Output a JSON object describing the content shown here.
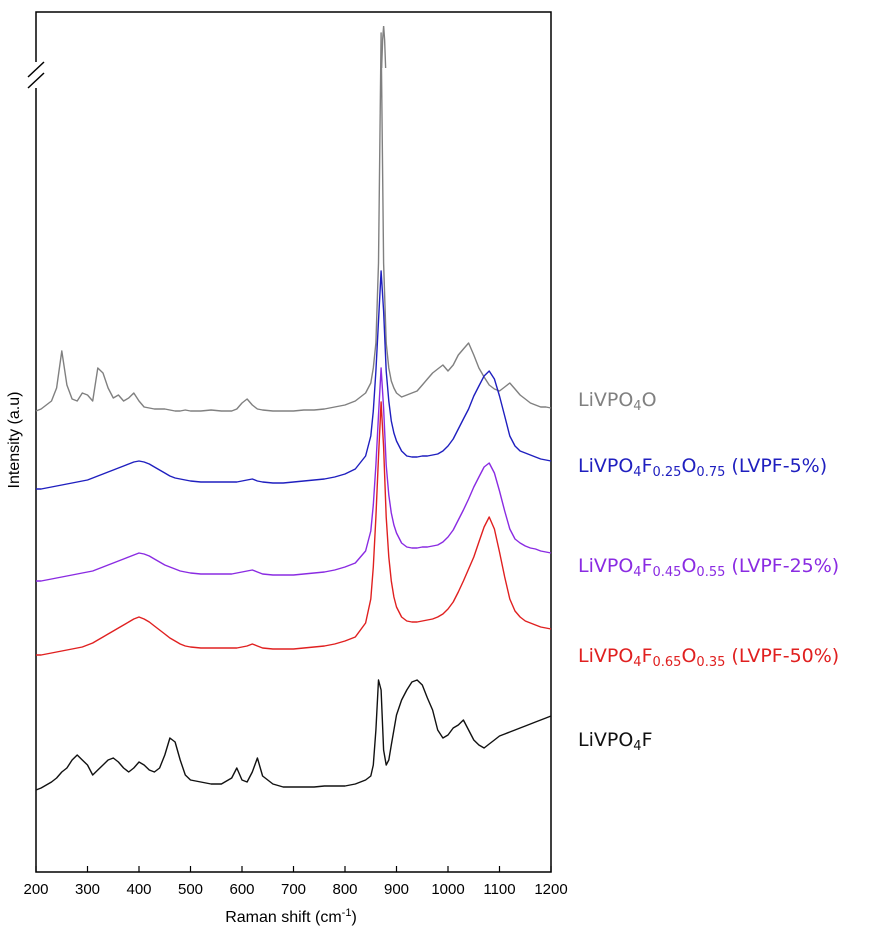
{
  "chart_data": {
    "type": "line",
    "xlabel": "Raman shift (cm",
    "xlabel_sup": "-1",
    "xlabel_close": ")",
    "ylabel": "Intensity (a.u)",
    "xlim": [
      200,
      1200
    ],
    "x_ticks": [
      "200",
      "300",
      "400",
      "500",
      "600",
      "700",
      "800",
      "900",
      "1000",
      "1100",
      "1200"
    ],
    "y_axis_break": true,
    "grid": false,
    "legend": "inline labels right of traces",
    "x": [
      200,
      210,
      220,
      230,
      240,
      250,
      260,
      270,
      280,
      290,
      300,
      310,
      320,
      330,
      340,
      350,
      360,
      370,
      380,
      390,
      400,
      410,
      420,
      430,
      440,
      450,
      460,
      470,
      480,
      490,
      500,
      520,
      540,
      560,
      580,
      590,
      600,
      610,
      620,
      630,
      640,
      660,
      680,
      700,
      720,
      740,
      760,
      780,
      800,
      820,
      840,
      850,
      855,
      860,
      865,
      870,
      875,
      880,
      885,
      890,
      895,
      900,
      910,
      920,
      930,
      940,
      950,
      960,
      970,
      980,
      990,
      1000,
      1010,
      1020,
      1030,
      1040,
      1050,
      1060,
      1070,
      1080,
      1090,
      1100,
      1110,
      1120,
      1130,
      1140,
      1150,
      1160,
      1170,
      1180,
      1190,
      1200
    ],
    "series": [
      {
        "name_parts": [
          {
            "t": "LiVPO"
          },
          {
            "t": "4",
            "sub": true
          },
          {
            "t": "O"
          }
        ],
        "color": "#808080",
        "values": [
          2,
          4,
          8,
          12,
          25,
          62,
          28,
          14,
          12,
          20,
          18,
          12,
          45,
          40,
          25,
          15,
          18,
          12,
          15,
          20,
          12,
          6,
          5,
          4,
          4,
          4,
          3,
          2,
          2,
          3,
          2,
          2,
          3,
          2,
          2,
          4,
          10,
          14,
          8,
          4,
          3,
          2,
          2,
          2,
          3,
          3,
          4,
          6,
          8,
          12,
          20,
          30,
          45,
          70,
          150,
          380,
          150,
          70,
          45,
          32,
          25,
          20,
          16,
          18,
          20,
          22,
          28,
          34,
          40,
          44,
          48,
          42,
          48,
          58,
          64,
          70,
          58,
          45,
          36,
          28,
          24,
          22,
          26,
          30,
          24,
          18,
          14,
          10,
          8,
          6,
          6,
          5
        ]
      },
      {
        "name_parts": [
          {
            "t": "LiVPO"
          },
          {
            "t": "4",
            "sub": true
          },
          {
            "t": "F"
          },
          {
            "t": "0.25",
            "sub": true
          },
          {
            "t": "O"
          },
          {
            "t": "0.75",
            "sub": true
          },
          {
            "t": " (LVPF-5%)"
          }
        ],
        "color": "#1f1fbf",
        "values": [
          2,
          2,
          3,
          4,
          5,
          6,
          7,
          8,
          9,
          10,
          11,
          13,
          15,
          17,
          19,
          21,
          23,
          25,
          27,
          29,
          30,
          29,
          27,
          24,
          21,
          18,
          15,
          13,
          12,
          11,
          10,
          9,
          9,
          9,
          9,
          9,
          10,
          11,
          12,
          10,
          9,
          8,
          8,
          9,
          10,
          11,
          12,
          14,
          17,
          22,
          35,
          55,
          80,
          120,
          170,
          220,
          180,
          120,
          90,
          70,
          58,
          50,
          40,
          35,
          34,
          34,
          35,
          35,
          36,
          37,
          40,
          45,
          52,
          62,
          72,
          82,
          95,
          105,
          115,
          120,
          112,
          95,
          75,
          55,
          45,
          40,
          38,
          36,
          34,
          32,
          31,
          30
        ]
      },
      {
        "name_parts": [
          {
            "t": "LiVPO"
          },
          {
            "t": "4",
            "sub": true
          },
          {
            "t": "F"
          },
          {
            "t": "0.45",
            "sub": true
          },
          {
            "t": "O"
          },
          {
            "t": "0.55",
            "sub": true
          },
          {
            "t": " (LVPF-25%)"
          }
        ],
        "color": "#8a2be2",
        "values": [
          2,
          2,
          3,
          4,
          5,
          6,
          7,
          8,
          9,
          10,
          11,
          12,
          14,
          16,
          18,
          20,
          22,
          24,
          26,
          28,
          30,
          29,
          27,
          24,
          21,
          18,
          16,
          14,
          12,
          11,
          10,
          9,
          9,
          9,
          9,
          10,
          11,
          12,
          13,
          11,
          9,
          8,
          8,
          8,
          9,
          10,
          11,
          13,
          16,
          20,
          32,
          52,
          78,
          118,
          168,
          215,
          175,
          118,
          88,
          70,
          58,
          50,
          40,
          36,
          35,
          35,
          36,
          36,
          37,
          38,
          41,
          46,
          53,
          63,
          73,
          84,
          96,
          106,
          116,
          120,
          110,
          92,
          72,
          54,
          44,
          40,
          37,
          35,
          34,
          32,
          31,
          30
        ]
      },
      {
        "name_parts": [
          {
            "t": "LiVPO"
          },
          {
            "t": "4",
            "sub": true
          },
          {
            "t": "F"
          },
          {
            "t": "0.65",
            "sub": true
          },
          {
            "t": "O"
          },
          {
            "t": "0.35",
            "sub": true
          },
          {
            "t": " (LVPF-50%)"
          }
        ],
        "color": "#e02020",
        "values": [
          2,
          2,
          3,
          4,
          5,
          6,
          7,
          8,
          9,
          10,
          12,
          14,
          17,
          20,
          23,
          26,
          29,
          32,
          35,
          38,
          40,
          38,
          35,
          31,
          27,
          23,
          19,
          16,
          13,
          11,
          10,
          9,
          9,
          9,
          9,
          9,
          10,
          11,
          13,
          11,
          9,
          8,
          8,
          8,
          9,
          10,
          11,
          13,
          16,
          20,
          34,
          58,
          90,
          140,
          200,
          255,
          210,
          140,
          100,
          76,
          60,
          50,
          40,
          36,
          35,
          35,
          36,
          37,
          38,
          40,
          43,
          48,
          55,
          65,
          76,
          88,
          100,
          115,
          130,
          140,
          128,
          105,
          80,
          58,
          46,
          40,
          36,
          34,
          32,
          30,
          29,
          28
        ]
      },
      {
        "name_parts": [
          {
            "t": "LiVPO"
          },
          {
            "t": "4",
            "sub": true
          },
          {
            "t": "F"
          }
        ],
        "color": "#111111",
        "values": [
          0,
          2,
          5,
          8,
          12,
          18,
          22,
          30,
          35,
          30,
          25,
          15,
          20,
          25,
          30,
          32,
          28,
          22,
          18,
          22,
          28,
          25,
          20,
          18,
          22,
          35,
          52,
          48,
          30,
          15,
          10,
          8,
          6,
          6,
          12,
          22,
          10,
          8,
          18,
          32,
          14,
          6,
          3,
          3,
          3,
          3,
          4,
          4,
          4,
          6,
          10,
          14,
          25,
          60,
          110,
          100,
          40,
          25,
          30,
          45,
          60,
          75,
          90,
          100,
          108,
          110,
          105,
          92,
          80,
          60,
          52,
          55,
          62,
          65,
          70,
          60,
          50,
          45,
          42,
          46,
          50,
          54,
          56,
          58,
          60,
          62,
          64,
          66,
          68,
          70,
          72,
          74
        ]
      }
    ]
  }
}
